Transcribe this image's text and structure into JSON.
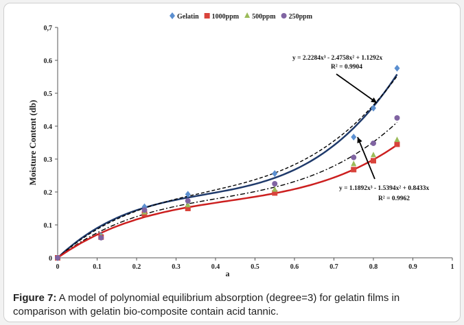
{
  "caption": {
    "label": "Figure 7:",
    "text": " A model of polynomial equilibrium absorption (degree=3) for gelatin films in comparison with gelatin bio-composite contain acid tannic."
  },
  "chart_data": {
    "type": "scatter",
    "title": "",
    "xlabel": "a",
    "ylabel": "Moisture Content (db)",
    "xlim": [
      0,
      1
    ],
    "ylim": [
      0,
      0.7
    ],
    "xticks": [
      "0",
      "0.1",
      "0.2",
      "0.3",
      "0.4",
      "0.5",
      "0.6",
      "0.7",
      "0.8",
      "0.9",
      "1"
    ],
    "yticks": [
      "0",
      "0.1",
      "0.2",
      "0.3",
      "0.4",
      "0.5",
      "0.6",
      "0,7"
    ],
    "legend_position": "top-center",
    "series": [
      {
        "name": "Gelatin",
        "color": "#5b8fd0",
        "marker": "diamond",
        "x": [
          0,
          0.11,
          0.22,
          0.33,
          0.55,
          0.75,
          0.8,
          0.86
        ],
        "y": [
          0.0,
          0.068,
          0.155,
          0.193,
          0.256,
          0.367,
          0.455,
          0.576
        ]
      },
      {
        "name": "1000ppm",
        "color": "#d9433b",
        "marker": "square",
        "x": [
          0,
          0.11,
          0.22,
          0.33,
          0.55,
          0.75,
          0.8,
          0.86
        ],
        "y": [
          0.0,
          0.063,
          0.133,
          0.15,
          0.197,
          0.268,
          0.295,
          0.345
        ]
      },
      {
        "name": "500ppm",
        "color": "#9bbb59",
        "marker": "triangle",
        "x": [
          0,
          0.11,
          0.22,
          0.33,
          0.55,
          0.75,
          0.8,
          0.86
        ],
        "y": [
          0.0,
          0.065,
          0.138,
          0.16,
          0.207,
          0.285,
          0.312,
          0.358
        ]
      },
      {
        "name": "250ppm",
        "color": "#8064a2",
        "marker": "circle",
        "x": [
          0,
          0.11,
          0.22,
          0.33,
          0.55,
          0.75,
          0.8,
          0.86
        ],
        "y": [
          0.0,
          0.061,
          0.145,
          0.173,
          0.225,
          0.305,
          0.348,
          0.425
        ]
      }
    ],
    "fits": [
      {
        "series": "Gelatin",
        "color": "#1f3a6b",
        "dash": "solid",
        "coef": [
          2.2284,
          -2.4758,
          1.1292
        ]
      },
      {
        "series": "250ppm",
        "color": "#000000",
        "dash": "dash",
        "coef": [
          1.9,
          -2.12,
          1.06
        ]
      },
      {
        "series": "500ppm",
        "color": "#000000",
        "dash": "dashdot",
        "coef": [
          1.45,
          -1.76,
          0.92
        ]
      },
      {
        "series": "1000ppm",
        "color": "#cc1f1f",
        "dash": "solid",
        "coef": [
          1.1892,
          -1.5394,
          0.8433
        ]
      }
    ],
    "annotations": [
      {
        "line1": "y = 2.2284x³ - 2.4758x² + 1.1292x",
        "line2": "R² = 0.9904"
      },
      {
        "line1": "y = 1.1892x³ - 1.5394x² + 0.8433x",
        "line2": "R² = 0.9962"
      }
    ]
  }
}
